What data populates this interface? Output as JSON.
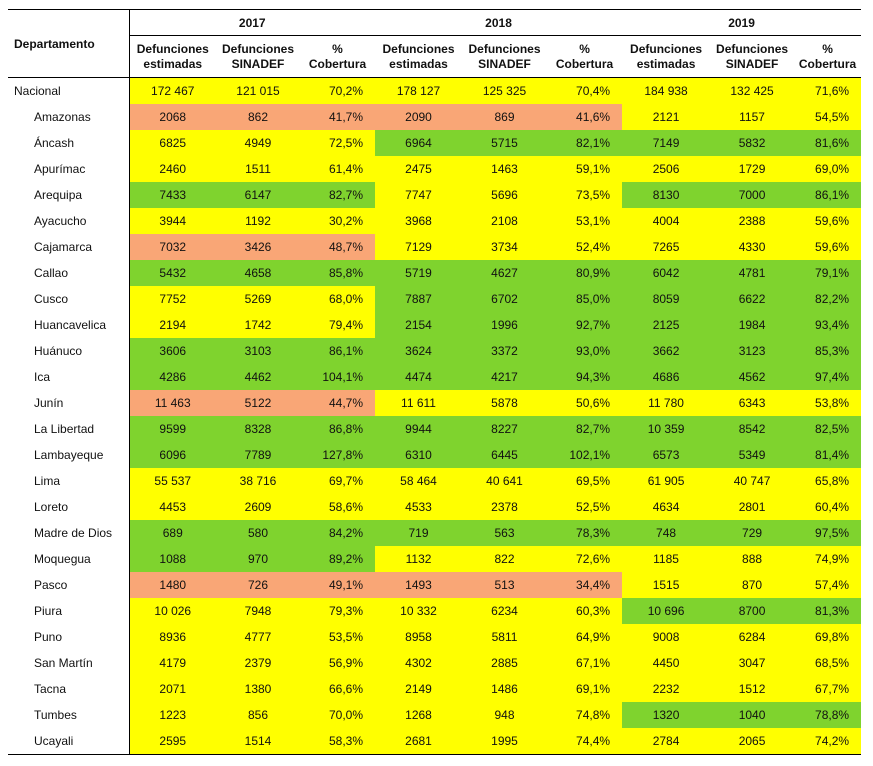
{
  "header": {
    "dept_label": "Departamento",
    "years": [
      "2017",
      "2018",
      "2019"
    ],
    "subheaders": [
      [
        "Defunciones",
        "estimadas"
      ],
      [
        "Defunciones",
        "SINADEF"
      ],
      [
        "%",
        "Cobertura"
      ]
    ]
  },
  "colors": {
    "Y": "#ffff00",
    "G": "#7fd32e",
    "O": "#f9a676"
  },
  "rows": [
    {
      "name": "Nacional",
      "level": 0,
      "values": [
        "172 467",
        "121 015",
        "70,2%",
        "178 127",
        "125 325",
        "70,4%",
        "184 938",
        "132 425",
        "71,6%"
      ],
      "fills": [
        "Y",
        "Y",
        "Y"
      ]
    },
    {
      "name": "Amazonas",
      "level": 1,
      "values": [
        "2068",
        "862",
        "41,7%",
        "2090",
        "869",
        "41,6%",
        "2121",
        "1157",
        "54,5%"
      ],
      "fills": [
        "O",
        "O",
        "Y"
      ]
    },
    {
      "name": "Áncash",
      "level": 1,
      "values": [
        "6825",
        "4949",
        "72,5%",
        "6964",
        "5715",
        "82,1%",
        "7149",
        "5832",
        "81,6%"
      ],
      "fills": [
        "Y",
        "G",
        "G"
      ]
    },
    {
      "name": "Apurímac",
      "level": 1,
      "values": [
        "2460",
        "1511",
        "61,4%",
        "2475",
        "1463",
        "59,1%",
        "2506",
        "1729",
        "69,0%"
      ],
      "fills": [
        "Y",
        "Y",
        "Y"
      ]
    },
    {
      "name": "Arequipa",
      "level": 1,
      "values": [
        "7433",
        "6147",
        "82,7%",
        "7747",
        "5696",
        "73,5%",
        "8130",
        "7000",
        "86,1%"
      ],
      "fills": [
        "G",
        "Y",
        "G"
      ]
    },
    {
      "name": "Ayacucho",
      "level": 1,
      "values": [
        "3944",
        "1192",
        "30,2%",
        "3968",
        "2108",
        "53,1%",
        "4004",
        "2388",
        "59,6%"
      ],
      "fills": [
        "Y",
        "Y",
        "Y"
      ]
    },
    {
      "name": "Cajamarca",
      "level": 1,
      "values": [
        "7032",
        "3426",
        "48,7%",
        "7129",
        "3734",
        "52,4%",
        "7265",
        "4330",
        "59,6%"
      ],
      "fills": [
        "O",
        "Y",
        "Y"
      ]
    },
    {
      "name": "Callao",
      "level": 1,
      "values": [
        "5432",
        "4658",
        "85,8%",
        "5719",
        "4627",
        "80,9%",
        "6042",
        "4781",
        "79,1%"
      ],
      "fills": [
        "G",
        "G",
        "G"
      ]
    },
    {
      "name": "Cusco",
      "level": 1,
      "values": [
        "7752",
        "5269",
        "68,0%",
        "7887",
        "6702",
        "85,0%",
        "8059",
        "6622",
        "82,2%"
      ],
      "fills": [
        "Y",
        "G",
        "G"
      ]
    },
    {
      "name": "Huancavelica",
      "level": 1,
      "values": [
        "2194",
        "1742",
        "79,4%",
        "2154",
        "1996",
        "92,7%",
        "2125",
        "1984",
        "93,4%"
      ],
      "fills": [
        "Y",
        "G",
        "G"
      ]
    },
    {
      "name": "Huánuco",
      "level": 1,
      "values": [
        "3606",
        "3103",
        "86,1%",
        "3624",
        "3372",
        "93,0%",
        "3662",
        "3123",
        "85,3%"
      ],
      "fills": [
        "G",
        "G",
        "G"
      ]
    },
    {
      "name": "Ica",
      "level": 1,
      "values": [
        "4286",
        "4462",
        "104,1%",
        "4474",
        "4217",
        "94,3%",
        "4686",
        "4562",
        "97,4%"
      ],
      "fills": [
        "G",
        "G",
        "G"
      ]
    },
    {
      "name": "Junín",
      "level": 1,
      "values": [
        "11 463",
        "5122",
        "44,7%",
        "11 611",
        "5878",
        "50,6%",
        "11 780",
        "6343",
        "53,8%"
      ],
      "fills": [
        "O",
        "Y",
        "Y"
      ]
    },
    {
      "name": "La Libertad",
      "level": 1,
      "values": [
        "9599",
        "8328",
        "86,8%",
        "9944",
        "8227",
        "82,7%",
        "10 359",
        "8542",
        "82,5%"
      ],
      "fills": [
        "G",
        "G",
        "G"
      ]
    },
    {
      "name": "Lambayeque",
      "level": 1,
      "values": [
        "6096",
        "7789",
        "127,8%",
        "6310",
        "6445",
        "102,1%",
        "6573",
        "5349",
        "81,4%"
      ],
      "fills": [
        "G",
        "G",
        "G"
      ]
    },
    {
      "name": "Lima",
      "level": 1,
      "values": [
        "55 537",
        "38 716",
        "69,7%",
        "58 464",
        "40 641",
        "69,5%",
        "61 905",
        "40 747",
        "65,8%"
      ],
      "fills": [
        "Y",
        "Y",
        "Y"
      ]
    },
    {
      "name": "Loreto",
      "level": 1,
      "values": [
        "4453",
        "2609",
        "58,6%",
        "4533",
        "2378",
        "52,5%",
        "4634",
        "2801",
        "60,4%"
      ],
      "fills": [
        "Y",
        "Y",
        "Y"
      ]
    },
    {
      "name": "Madre de Dios",
      "level": 1,
      "values": [
        "689",
        "580",
        "84,2%",
        "719",
        "563",
        "78,3%",
        "748",
        "729",
        "97,5%"
      ],
      "fills": [
        "G",
        "G",
        "G"
      ]
    },
    {
      "name": "Moquegua",
      "level": 1,
      "values": [
        "1088",
        "970",
        "89,2%",
        "1132",
        "822",
        "72,6%",
        "1185",
        "888",
        "74,9%"
      ],
      "fills": [
        "G",
        "Y",
        "Y"
      ]
    },
    {
      "name": "Pasco",
      "level": 1,
      "values": [
        "1480",
        "726",
        "49,1%",
        "1493",
        "513",
        "34,4%",
        "1515",
        "870",
        "57,4%"
      ],
      "fills": [
        "O",
        "O",
        "Y"
      ]
    },
    {
      "name": "Piura",
      "level": 1,
      "values": [
        "10 026",
        "7948",
        "79,3%",
        "10 332",
        "6234",
        "60,3%",
        "10 696",
        "8700",
        "81,3%"
      ],
      "fills": [
        "Y",
        "Y",
        "G"
      ]
    },
    {
      "name": "Puno",
      "level": 1,
      "values": [
        "8936",
        "4777",
        "53,5%",
        "8958",
        "5811",
        "64,9%",
        "9008",
        "6284",
        "69,8%"
      ],
      "fills": [
        "Y",
        "Y",
        "Y"
      ]
    },
    {
      "name": "San Martín",
      "level": 1,
      "values": [
        "4179",
        "2379",
        "56,9%",
        "4302",
        "2885",
        "67,1%",
        "4450",
        "3047",
        "68,5%"
      ],
      "fills": [
        "Y",
        "Y",
        "Y"
      ]
    },
    {
      "name": "Tacna",
      "level": 1,
      "values": [
        "2071",
        "1380",
        "66,6%",
        "2149",
        "1486",
        "69,1%",
        "2232",
        "1512",
        "67,7%"
      ],
      "fills": [
        "Y",
        "Y",
        "Y"
      ]
    },
    {
      "name": "Tumbes",
      "level": 1,
      "values": [
        "1223",
        "856",
        "70,0%",
        "1268",
        "948",
        "74,8%",
        "1320",
        "1040",
        "78,8%"
      ],
      "fills": [
        "Y",
        "Y",
        "G"
      ]
    },
    {
      "name": "Ucayali",
      "level": 1,
      "values": [
        "2595",
        "1514",
        "58,3%",
        "2681",
        "1995",
        "74,4%",
        "2784",
        "2065",
        "74,2%"
      ],
      "fills": [
        "Y",
        "Y",
        "Y"
      ]
    }
  ]
}
